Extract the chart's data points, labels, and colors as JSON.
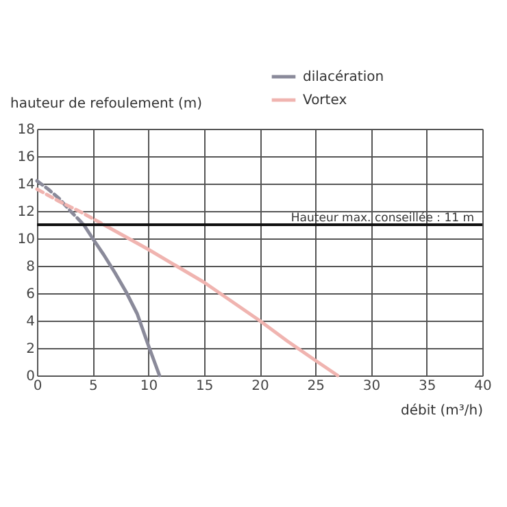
{
  "chart_data": {
    "type": "line",
    "xlabel": "débit (m³/h)",
    "ylabel": "hauteur de refoulement (m)",
    "xlim": [
      0,
      40
    ],
    "ylim": [
      0,
      18
    ],
    "xticks": [
      0,
      5,
      10,
      15,
      20,
      25,
      30,
      35,
      40
    ],
    "yticks": [
      0,
      2,
      4,
      6,
      8,
      10,
      12,
      14,
      16,
      18
    ],
    "grid": true,
    "legend": "top right",
    "marker": "none",
    "series": [
      {
        "color": "#8a8a9a",
        "line_style": "dashed",
        "x": [
          0,
          1,
          2,
          3,
          4.2
        ],
        "values": [
          14.2,
          13.6,
          12.9,
          12,
          11
        ]
      },
      {
        "name": "dilacération",
        "color": "#8a8a9a",
        "line_style": "solid",
        "x": [
          4.2,
          5,
          6,
          7,
          8,
          9,
          10,
          10.5,
          11
        ],
        "values": [
          11,
          10,
          8.8,
          7.5,
          6.1,
          4.5,
          2.2,
          1.1,
          0
        ]
      },
      {
        "color": "#f0b4b0",
        "line_style": "dashed",
        "x": [
          0,
          2,
          4,
          6
        ],
        "values": [
          13.6,
          12.7,
          11.9,
          11
        ]
      },
      {
        "name": "Vortex",
        "color": "#f0b4b0",
        "line_style": "solid",
        "x": [
          6,
          8,
          10,
          12.5,
          15,
          17.5,
          20,
          22.5,
          25,
          27
        ],
        "values": [
          11,
          10.1,
          9.2,
          8,
          6.8,
          5.4,
          4,
          2.5,
          1.1,
          0
        ]
      }
    ],
    "ref_lines": [
      {
        "axis": "y",
        "value": 11,
        "label": "Hauteur max. conseillée : 11 m",
        "color": "#111111",
        "line_style": "solid"
      }
    ]
  }
}
